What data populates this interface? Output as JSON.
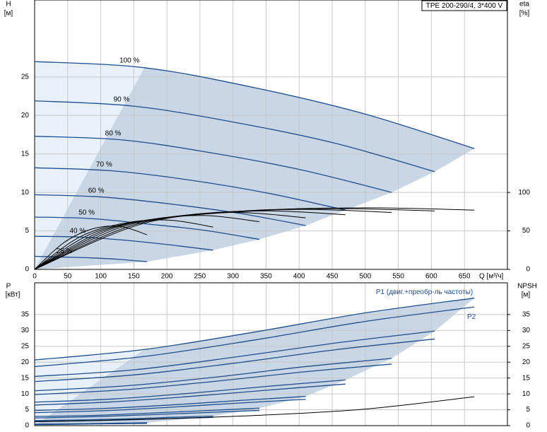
{
  "chart_data": [
    {
      "type": "line",
      "title": "TPE 200-290/4, 3*400 V",
      "y_label": "H",
      "y_unit": "[м]",
      "y2_label": "eta",
      "y2_unit": "[%]",
      "x_label": "Q [м³/ч]",
      "xlim": [
        0,
        715
      ],
      "xticks": [
        0,
        50,
        100,
        150,
        200,
        250,
        300,
        350,
        400,
        450,
        500,
        550,
        600,
        650
      ],
      "ylim": [
        0,
        35
      ],
      "yticks": [
        0,
        5,
        10,
        15,
        20,
        25
      ],
      "y2lim": [
        0,
        350
      ],
      "y2ticks": [
        0,
        50,
        100
      ],
      "grid": true,
      "series": [
        {
          "name": "100 %",
          "color": "#1f4e8c",
          "x": [
            0,
            166,
            333,
            499,
            665
          ],
          "values": [
            27,
            26.2,
            23.6,
            20.2,
            15.7
          ]
        },
        {
          "name": "90 %",
          "color": "#1f4e8c",
          "x": [
            0,
            151,
            303,
            454,
            605
          ],
          "values": [
            21.9,
            21.2,
            19.1,
            16.4,
            12.7
          ]
        },
        {
          "name": "80 %",
          "color": "#1f4e8c",
          "x": [
            0,
            135,
            270,
            405,
            540
          ],
          "values": [
            17.3,
            16.8,
            15.1,
            12.9,
            10.0
          ]
        },
        {
          "name": "70 %",
          "color": "#1f4e8c",
          "x": [
            0,
            118,
            235,
            353,
            470
          ],
          "values": [
            13.2,
            12.8,
            11.6,
            9.9,
            7.7
          ]
        },
        {
          "name": "60 %",
          "color": "#1f4e8c",
          "x": [
            0,
            103,
            205,
            308,
            410
          ],
          "values": [
            9.7,
            9.4,
            8.5,
            7.3,
            5.7
          ]
        },
        {
          "name": "50 %",
          "color": "#1f4e8c",
          "x": [
            0,
            85,
            170,
            255,
            340
          ],
          "values": [
            6.8,
            6.6,
            5.9,
            5.1,
            3.9
          ]
        },
        {
          "name": "40 %",
          "color": "#1f4e8c",
          "x": [
            0,
            68,
            135,
            203,
            270
          ],
          "values": [
            4.3,
            4.2,
            3.8,
            3.2,
            2.5
          ]
        },
        {
          "name": "25 %",
          "color": "#1f4e8c",
          "x": [
            0,
            43,
            85,
            128,
            170
          ],
          "values": [
            1.7,
            1.6,
            1.5,
            1.3,
            1.0
          ]
        },
        {
          "color": "#000000",
          "axis": "y2",
          "x": [
            0,
            166,
            333,
            499,
            665
          ],
          "values": [
            0,
            60,
            76,
            80,
            77
          ]
        },
        {
          "color": "#000000",
          "axis": "y2",
          "x": [
            0,
            151,
            303,
            454,
            605
          ],
          "values": [
            0,
            58,
            75,
            79,
            76
          ]
        },
        {
          "color": "#000000",
          "axis": "y2",
          "x": [
            0,
            135,
            270,
            405,
            540
          ],
          "values": [
            0,
            56,
            73,
            78,
            74
          ]
        },
        {
          "color": "#000000",
          "axis": "y2",
          "x": [
            0,
            118,
            235,
            353,
            470
          ],
          "values": [
            0,
            53,
            71,
            76,
            71
          ]
        },
        {
          "color": "#000000",
          "axis": "y2",
          "x": [
            0,
            103,
            205,
            308,
            410
          ],
          "values": [
            0,
            50,
            68,
            74,
            67
          ]
        },
        {
          "color": "#000000",
          "axis": "y2",
          "x": [
            0,
            85,
            170,
            255,
            340
          ],
          "values": [
            0,
            46,
            64,
            70,
            62
          ]
        },
        {
          "color": "#000000",
          "axis": "y2",
          "x": [
            0,
            68,
            135,
            203,
            270
          ],
          "values": [
            0,
            42,
            60,
            64,
            55
          ]
        },
        {
          "color": "#000000",
          "axis": "y2",
          "x": [
            0,
            43,
            85,
            128,
            170
          ],
          "values": [
            0,
            34,
            52,
            56,
            45
          ]
        }
      ]
    },
    {
      "type": "line",
      "y_label": "P",
      "y_unit": "[кВт]",
      "y2_label": "NPSH",
      "y2_unit": "[м]",
      "xlim": [
        0,
        715
      ],
      "xticks": [
        0,
        50,
        100,
        150,
        200,
        250,
        300,
        350,
        400,
        450,
        500,
        550,
        600,
        650
      ],
      "ylim": [
        0,
        45
      ],
      "yticks": [
        0,
        5,
        10,
        15,
        20,
        25,
        30,
        35
      ],
      "y2lim": [
        0,
        45
      ],
      "y2ticks": [
        0,
        5,
        10,
        15,
        20,
        25,
        30,
        35
      ],
      "grid": true,
      "series": [
        {
          "name": "P1 (двиг.+преобр-ль частоты)",
          "color": "#1f4e8c",
          "x": [
            0,
            166,
            333,
            499,
            665
          ],
          "values": [
            20.7,
            24,
            29.5,
            35.5,
            40.2
          ]
        },
        {
          "color": "#1f4e8c",
          "x": [
            0,
            151,
            303,
            454,
            605
          ],
          "values": [
            15.5,
            17.6,
            21.6,
            26,
            29.8
          ]
        },
        {
          "color": "#1f4e8c",
          "x": [
            0,
            135,
            270,
            405,
            540
          ],
          "values": [
            11,
            12.5,
            15.2,
            18.5,
            21.2
          ]
        },
        {
          "color": "#1f4e8c",
          "x": [
            0,
            118,
            235,
            353,
            470
          ],
          "values": [
            7.4,
            8.4,
            10.2,
            12.4,
            14.4
          ]
        },
        {
          "color": "#1f4e8c",
          "x": [
            0,
            103,
            205,
            308,
            410
          ],
          "values": [
            4.8,
            5.4,
            6.5,
            7.9,
            9.2
          ]
        },
        {
          "color": "#1f4e8c",
          "x": [
            0,
            85,
            170,
            255,
            340
          ],
          "values": [
            2.9,
            3.2,
            3.9,
            4.7,
            5.5
          ]
        },
        {
          "color": "#1f4e8c",
          "x": [
            0,
            68,
            135,
            203,
            270
          ],
          "values": [
            1.6,
            1.8,
            2.1,
            2.6,
            3.0
          ]
        },
        {
          "color": "#1f4e8c",
          "x": [
            0,
            43,
            85,
            128,
            170
          ],
          "values": [
            0.5,
            0.55,
            0.65,
            0.8,
            0.9
          ]
        },
        {
          "name": "P2",
          "color": "#1f4e8c",
          "x": [
            0,
            166,
            333,
            499,
            665
          ],
          "values": [
            18.6,
            21.8,
            27,
            32.8,
            37.4
          ]
        },
        {
          "color": "#1f4e8c",
          "x": [
            0,
            151,
            303,
            454,
            605
          ],
          "values": [
            13.9,
            16,
            19.7,
            23.9,
            27.3
          ]
        },
        {
          "color": "#1f4e8c",
          "x": [
            0,
            135,
            270,
            405,
            540
          ],
          "values": [
            9.8,
            11.3,
            13.9,
            16.9,
            19.4
          ]
        },
        {
          "color": "#1f4e8c",
          "x": [
            0,
            118,
            235,
            353,
            470
          ],
          "values": [
            6.5,
            7.5,
            9.2,
            11.2,
            13.1
          ]
        },
        {
          "color": "#1f4e8c",
          "x": [
            0,
            103,
            205,
            308,
            410
          ],
          "values": [
            4.1,
            4.7,
            5.8,
            7.1,
            8.3
          ]
        },
        {
          "color": "#1f4e8c",
          "x": [
            0,
            85,
            170,
            255,
            340
          ],
          "values": [
            2.4,
            2.8,
            3.4,
            4.1,
            4.8
          ]
        },
        {
          "color": "#1f4e8c",
          "x": [
            0,
            68,
            135,
            203,
            270
          ],
          "values": [
            1.3,
            1.5,
            1.8,
            2.2,
            2.6
          ]
        },
        {
          "color": "#1f4e8c",
          "x": [
            0,
            43,
            85,
            128,
            170
          ],
          "values": [
            0.35,
            0.4,
            0.5,
            0.6,
            0.7
          ]
        },
        {
          "color": "#000000",
          "axis": "y2",
          "x": [
            0,
            166,
            333,
            499,
            665
          ],
          "values": [
            1.2,
            2,
            3.2,
            5.2,
            9.1
          ]
        }
      ]
    }
  ]
}
